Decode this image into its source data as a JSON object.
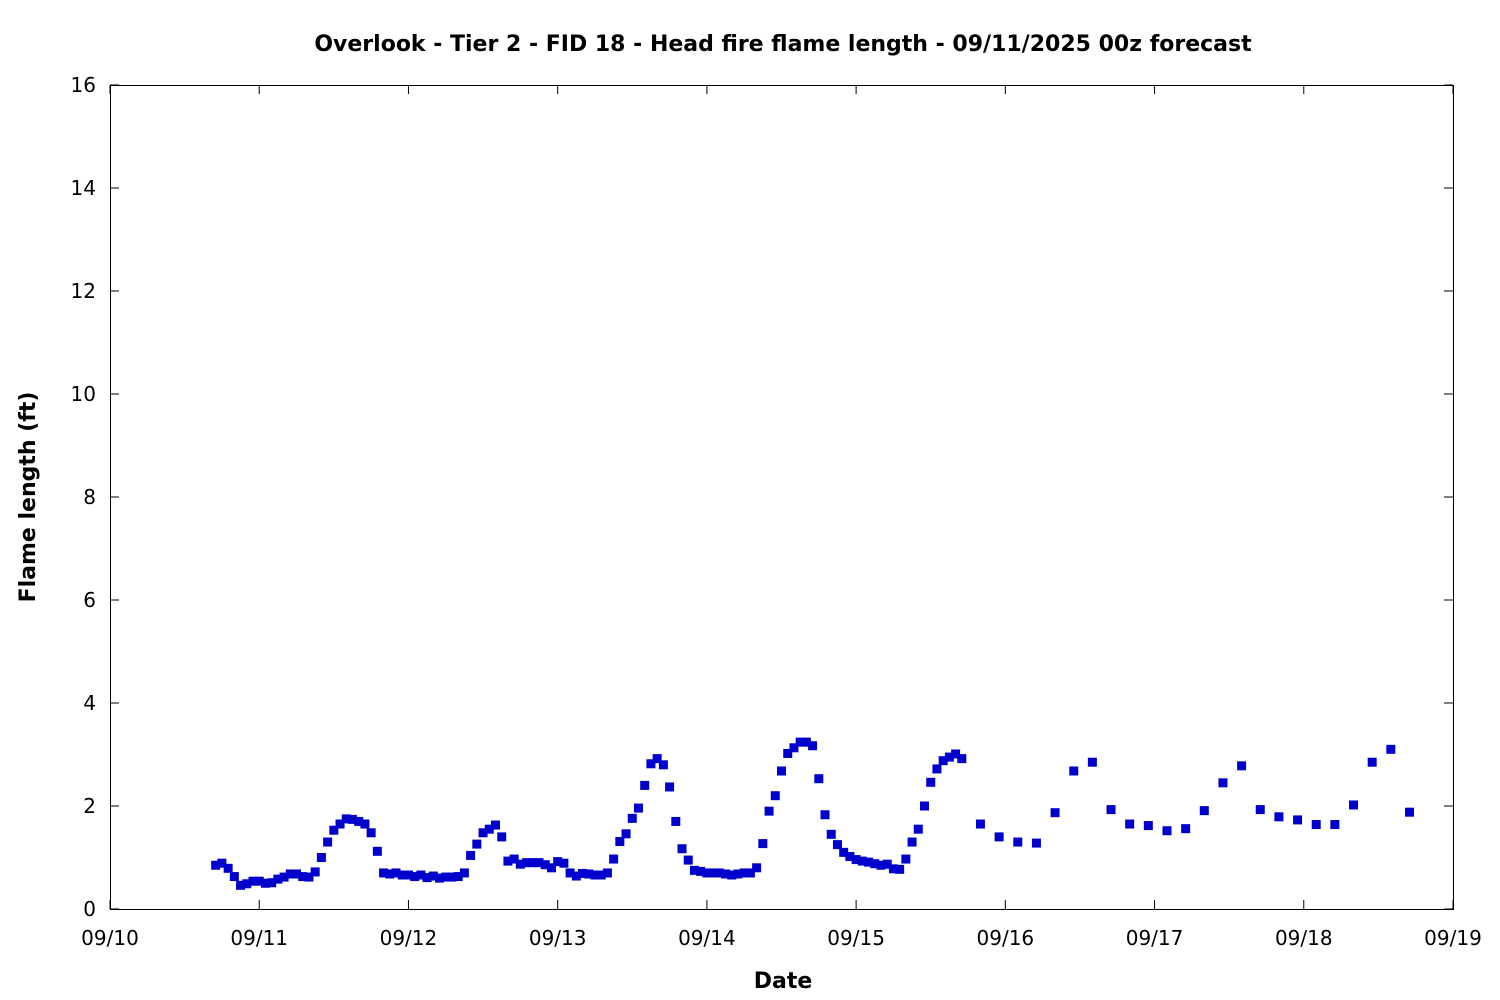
{
  "chart_data": {
    "type": "scatter",
    "title": "Overlook - Tier 2 - FID 18 - Head fire flame length - 09/11/2025 00z forecast",
    "xlabel": "Date",
    "ylabel": "Flame length (ft)",
    "x_unit": "days",
    "xlim": [
      "09/10 00:00",
      "09/19 00:00"
    ],
    "ylim": [
      0,
      16
    ],
    "x_ticks": [
      {
        "label": "09/10",
        "value": "09/10 00:00"
      },
      {
        "label": "09/11",
        "value": "09/11 00:00"
      },
      {
        "label": "09/12",
        "value": "09/12 00:00"
      },
      {
        "label": "09/13",
        "value": "09/13 00:00"
      },
      {
        "label": "09/14",
        "value": "09/14 00:00"
      },
      {
        "label": "09/15",
        "value": "09/15 00:00"
      },
      {
        "label": "09/16",
        "value": "09/16 00:00"
      },
      {
        "label": "09/17",
        "value": "09/17 00:00"
      },
      {
        "label": "09/18",
        "value": "09/18 00:00"
      },
      {
        "label": "09/19",
        "value": "09/19 00:00"
      }
    ],
    "y_ticks": [
      0,
      2,
      4,
      6,
      8,
      10,
      12,
      14,
      16
    ],
    "grid": false,
    "marker_color": "#0000cc",
    "series": [
      {
        "x": [
          "09/10 17:00",
          "09/10 18:00",
          "09/10 19:00",
          "09/10 20:00",
          "09/10 21:00",
          "09/10 22:00",
          "09/10 23:00",
          "09/11 00:00",
          "09/11 01:00",
          "09/11 02:00",
          "09/11 03:00",
          "09/11 04:00",
          "09/11 05:00",
          "09/11 06:00",
          "09/11 07:00",
          "09/11 08:00",
          "09/11 09:00",
          "09/11 10:00",
          "09/11 11:00",
          "09/11 12:00",
          "09/11 13:00",
          "09/11 14:00",
          "09/11 15:00",
          "09/11 16:00",
          "09/11 17:00",
          "09/11 18:00",
          "09/11 19:00",
          "09/11 20:00",
          "09/11 21:00",
          "09/11 22:00",
          "09/11 23:00",
          "09/12 00:00",
          "09/12 01:00",
          "09/12 02:00",
          "09/12 03:00",
          "09/12 04:00",
          "09/12 05:00",
          "09/12 06:00",
          "09/12 07:00",
          "09/12 08:00",
          "09/12 09:00",
          "09/12 10:00",
          "09/12 11:00",
          "09/12 12:00",
          "09/12 13:00",
          "09/12 14:00",
          "09/12 15:00",
          "09/12 16:00",
          "09/12 17:00",
          "09/12 18:00",
          "09/12 19:00",
          "09/12 20:00",
          "09/12 21:00",
          "09/12 22:00",
          "09/12 23:00",
          "09/13 00:00",
          "09/13 01:00",
          "09/13 02:00",
          "09/13 03:00",
          "09/13 04:00",
          "09/13 05:00",
          "09/13 06:00",
          "09/13 07:00",
          "09/13 08:00",
          "09/13 09:00",
          "09/13 10:00",
          "09/13 11:00",
          "09/13 12:00",
          "09/13 13:00",
          "09/13 14:00",
          "09/13 15:00",
          "09/13 16:00",
          "09/13 17:00",
          "09/13 18:00",
          "09/13 19:00",
          "09/13 20:00",
          "09/13 21:00",
          "09/13 22:00",
          "09/13 23:00",
          "09/14 00:00",
          "09/14 01:00",
          "09/14 02:00",
          "09/14 03:00",
          "09/14 04:00",
          "09/14 05:00",
          "09/14 06:00",
          "09/14 07:00",
          "09/14 08:00",
          "09/14 09:00",
          "09/14 10:00",
          "09/14 11:00",
          "09/14 12:00",
          "09/14 13:00",
          "09/14 14:00",
          "09/14 15:00",
          "09/14 16:00",
          "09/14 17:00",
          "09/14 18:00",
          "09/14 19:00",
          "09/14 20:00",
          "09/14 21:00",
          "09/14 22:00",
          "09/14 23:00",
          "09/15 00:00",
          "09/15 01:00",
          "09/15 02:00",
          "09/15 03:00",
          "09/15 04:00",
          "09/15 05:00",
          "09/15 06:00",
          "09/15 07:00",
          "09/15 08:00",
          "09/15 09:00",
          "09/15 10:00",
          "09/15 11:00",
          "09/15 12:00",
          "09/15 13:00",
          "09/15 14:00",
          "09/15 15:00",
          "09/15 16:00",
          "09/15 17:00",
          "09/15 20:00",
          "09/15 23:00",
          "09/16 02:00",
          "09/16 05:00",
          "09/16 08:00",
          "09/16 11:00",
          "09/16 14:00",
          "09/16 17:00",
          "09/16 20:00",
          "09/16 23:00",
          "09/17 02:00",
          "09/17 05:00",
          "09/17 08:00",
          "09/17 11:00",
          "09/17 14:00",
          "09/17 17:00",
          "09/17 20:00",
          "09/17 23:00",
          "09/18 02:00",
          "09/18 05:00",
          "09/18 08:00",
          "09/18 11:00",
          "09/18 14:00",
          "09/18 17:00"
        ],
        "y": [
          0.85,
          0.89,
          0.79,
          0.63,
          0.46,
          0.49,
          0.54,
          0.54,
          0.5,
          0.51,
          0.58,
          0.62,
          0.68,
          0.68,
          0.63,
          0.62,
          0.72,
          1.0,
          1.3,
          1.53,
          1.65,
          1.75,
          1.74,
          1.7,
          1.65,
          1.48,
          1.12,
          0.7,
          0.68,
          0.7,
          0.66,
          0.66,
          0.63,
          0.66,
          0.61,
          0.64,
          0.6,
          0.62,
          0.62,
          0.63,
          0.7,
          1.04,
          1.26,
          1.48,
          1.55,
          1.63,
          1.4,
          0.93,
          0.97,
          0.87,
          0.9,
          0.9,
          0.9,
          0.86,
          0.8,
          0.92,
          0.89,
          0.7,
          0.64,
          0.69,
          0.68,
          0.66,
          0.66,
          0.7,
          0.97,
          1.31,
          1.46,
          1.76,
          1.96,
          2.4,
          2.82,
          2.92,
          2.8,
          2.37,
          1.7,
          1.17,
          0.95,
          0.75,
          0.73,
          0.7,
          0.7,
          0.7,
          0.68,
          0.66,
          0.68,
          0.7,
          0.7,
          0.8,
          1.27,
          1.9,
          2.2,
          2.68,
          3.02,
          3.13,
          3.24,
          3.24,
          3.17,
          2.53,
          1.83,
          1.45,
          1.25,
          1.1,
          1.02,
          0.96,
          0.93,
          0.91,
          0.88,
          0.85,
          0.87,
          0.78,
          0.77,
          0.97,
          1.3,
          1.55,
          2.0,
          2.46,
          2.72,
          2.88,
          2.95,
          3.01,
          2.92,
          1.65,
          1.4,
          1.3,
          1.28,
          1.87,
          2.68,
          2.85,
          1.93,
          1.65,
          1.62,
          1.52,
          1.56,
          1.91,
          2.45,
          2.78,
          1.93,
          1.79,
          1.73,
          1.64,
          1.64,
          2.02,
          2.85,
          3.1,
          1.88
        ]
      }
    ]
  }
}
